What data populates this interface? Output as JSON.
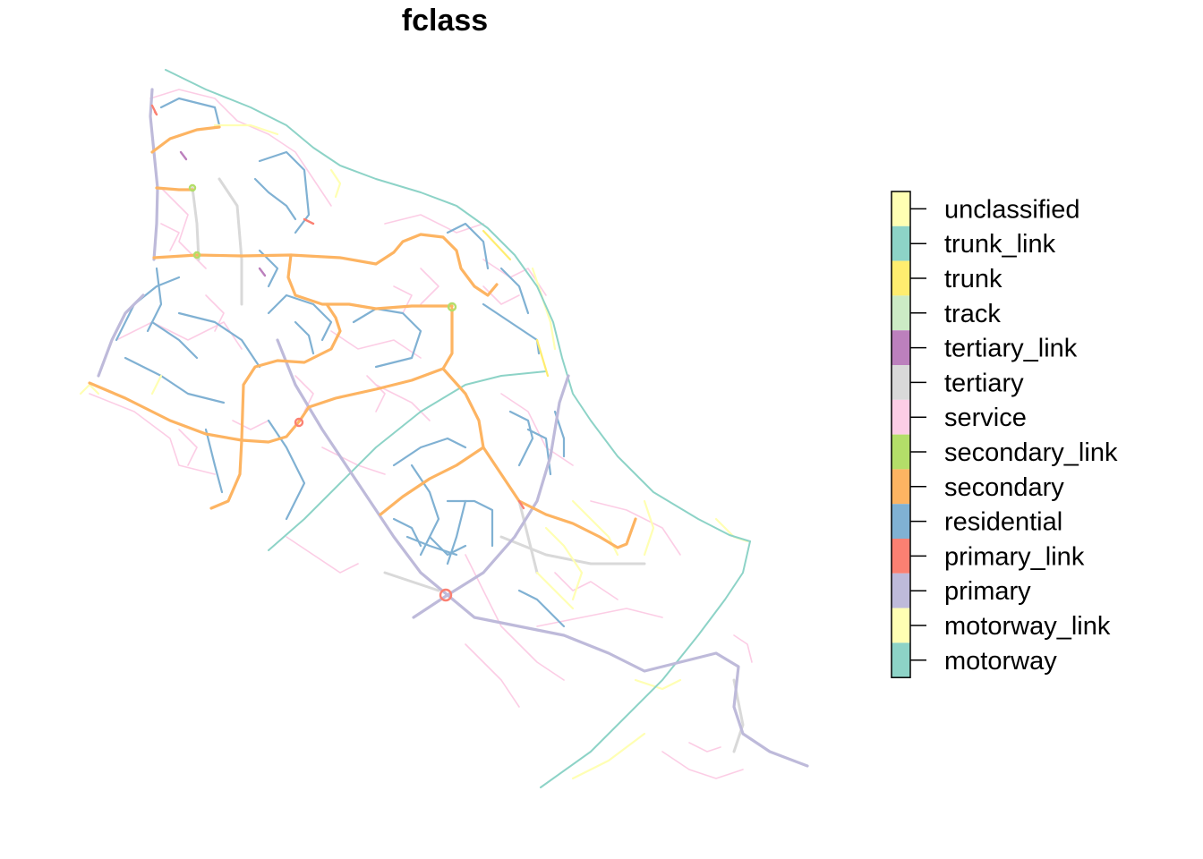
{
  "map": {
    "title": "fclass"
  },
  "legend": {
    "items": [
      {
        "label": "unclassified",
        "color": "#FFFFB3"
      },
      {
        "label": "trunk_link",
        "color": "#8DD3C7"
      },
      {
        "label": "trunk",
        "color": "#FFED6F"
      },
      {
        "label": "track",
        "color": "#CCEBC5"
      },
      {
        "label": "tertiary_link",
        "color": "#BC80BD"
      },
      {
        "label": "tertiary",
        "color": "#D9D9D9"
      },
      {
        "label": "service",
        "color": "#FCCDE5"
      },
      {
        "label": "secondary_link",
        "color": "#B3DE69"
      },
      {
        "label": "secondary",
        "color": "#FDB462"
      },
      {
        "label": "residential",
        "color": "#80B1D3"
      },
      {
        "label": "primary_link",
        "color": "#FB8072"
      },
      {
        "label": "primary",
        "color": "#BEBADA"
      },
      {
        "label": "motorway_link",
        "color": "#FFFFB3"
      },
      {
        "label": "motorway",
        "color": "#8DD3C7"
      }
    ]
  }
}
